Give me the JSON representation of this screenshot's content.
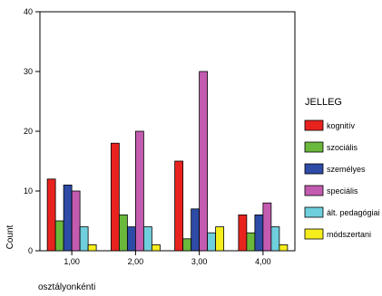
{
  "chart_data": {
    "type": "bar",
    "xlabel": "osztályonkénti",
    "ylabel": "Count",
    "ylim": [
      0,
      40
    ],
    "yticks": [
      0,
      10,
      20,
      30,
      40
    ],
    "categories": [
      "1,00",
      "2,00",
      "3,00",
      "4,00"
    ],
    "legend": {
      "title": "JELLEG",
      "placement": "right"
    },
    "series": [
      {
        "name": "kognitív",
        "color": "#e8231f",
        "values": [
          12,
          18,
          15,
          6
        ]
      },
      {
        "name": "szociális",
        "color": "#6ab83c",
        "values": [
          5,
          6,
          2,
          3
        ]
      },
      {
        "name": "személyes",
        "color": "#2e4ba6",
        "values": [
          11,
          4,
          7,
          6
        ]
      },
      {
        "name": "speciális",
        "color": "#c35bb0",
        "values": [
          10,
          20,
          30,
          8
        ]
      },
      {
        "name": "ált. pedagógiai",
        "color": "#6fcfdc",
        "values": [
          4,
          4,
          3,
          4
        ]
      },
      {
        "name": "módszertani",
        "color": "#f6ed1d",
        "values": [
          1,
          1,
          4,
          1
        ]
      }
    ]
  }
}
